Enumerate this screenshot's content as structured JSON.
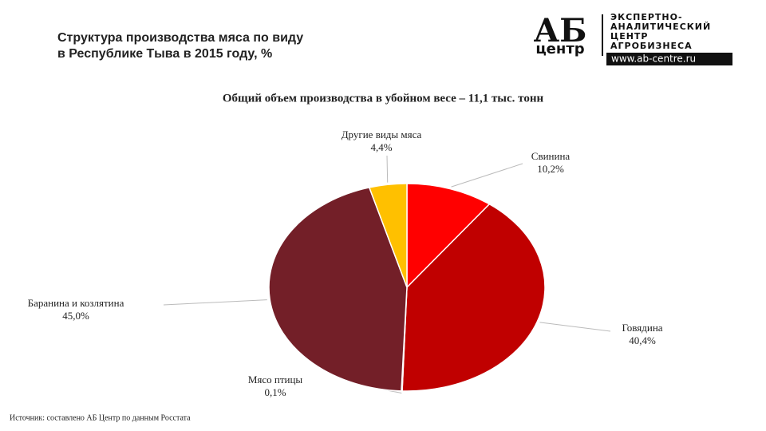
{
  "header": {
    "title_lines": [
      "Структура производства мяса по виду",
      "в Республике Тыва в 2015 году, %"
    ]
  },
  "logo": {
    "mark": "АБ",
    "sub": "центр",
    "lines": [
      "ЭКСПЕРТНО-",
      "АНАЛИТИЧЕСКИЙ",
      "ЦЕНТР",
      "АГРОБИЗНЕСА"
    ],
    "url": "www.ab-centre.ru"
  },
  "chart_data": {
    "type": "pie",
    "title": "Общий объем производства  в убойном весе – 11,1 тыс. тонн",
    "categories": [
      "Свинина",
      "Говядина",
      "Мясо птицы",
      "Баранина и козлятина",
      "Другие виды мяса"
    ],
    "values": [
      10.2,
      40.4,
      0.1,
      45.0,
      4.4
    ],
    "value_labels": [
      "10,2%",
      "40,4%",
      "0,1%",
      "45,0%",
      "4,4%"
    ],
    "colors": [
      "#ff0000",
      "#c00000",
      "#8e1c1c",
      "#731f28",
      "#ffc000"
    ]
  },
  "source": "Источник: составлено АБ Центр по данным Росстата"
}
